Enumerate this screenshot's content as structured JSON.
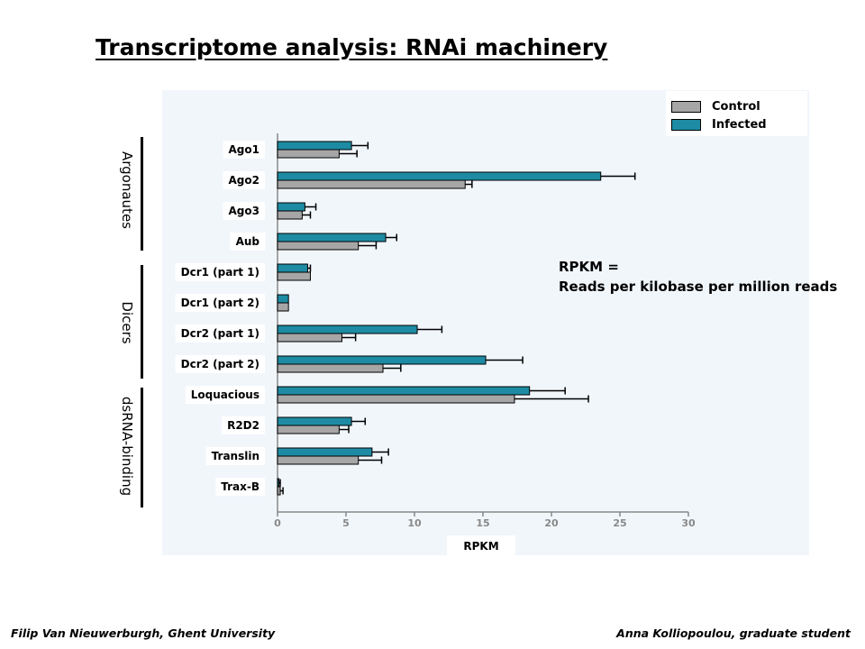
{
  "slide": {
    "title": "Transcriptome analysis: RNAi machinery",
    "footer_left": "Filip Van Nieuwerburgh, Ghent University",
    "footer_right": "Anna Kolliopoulou, graduate student"
  },
  "note": {
    "line1": "RPKM =",
    "line2": "Reads per kilobase per million reads"
  },
  "groups": [
    {
      "label": "Argonautes"
    },
    {
      "label": "Dicers"
    },
    {
      "label": "dsRNA-binding"
    }
  ],
  "colors": {
    "control": "#a6a6a6",
    "infected": "#1d8ba3",
    "panel_background": "#f1f6fb",
    "axis": "#888888"
  },
  "chart_data": {
    "type": "bar",
    "orientation": "horizontal",
    "xlabel": "RPKM",
    "xlim": [
      0,
      30
    ],
    "xticks": [
      "0",
      "5",
      "10",
      "15",
      "20",
      "25",
      "30"
    ],
    "legend_position": "top-right",
    "grid": false,
    "categories": [
      "Ago1",
      "Ago2",
      "Ago3",
      "Aub",
      "Dcr1 (part 1)",
      "Dcr1 (part 2)",
      "Dcr2 (part 1)",
      "Dcr2 (part 2)",
      "Loquacious",
      "R2D2",
      "Translin",
      "Trax-B"
    ],
    "series": [
      {
        "name": "Control",
        "values": [
          4.5,
          13.7,
          1.8,
          5.9,
          2.4,
          0.8,
          4.7,
          7.7,
          17.3,
          4.5,
          5.9,
          0.2
        ],
        "errors": [
          1.3,
          0.5,
          0.6,
          1.3,
          0,
          0,
          1.0,
          1.3,
          5.4,
          0.7,
          1.7,
          0.2
        ]
      },
      {
        "name": "Infected",
        "values": [
          5.4,
          23.6,
          2.0,
          7.9,
          2.2,
          0.8,
          10.2,
          15.2,
          18.4,
          5.4,
          6.9,
          0.1
        ],
        "errors": [
          1.2,
          2.5,
          0.8,
          0.8,
          0.2,
          0,
          1.8,
          2.7,
          2.6,
          1.0,
          1.2,
          0.1
        ]
      }
    ]
  }
}
